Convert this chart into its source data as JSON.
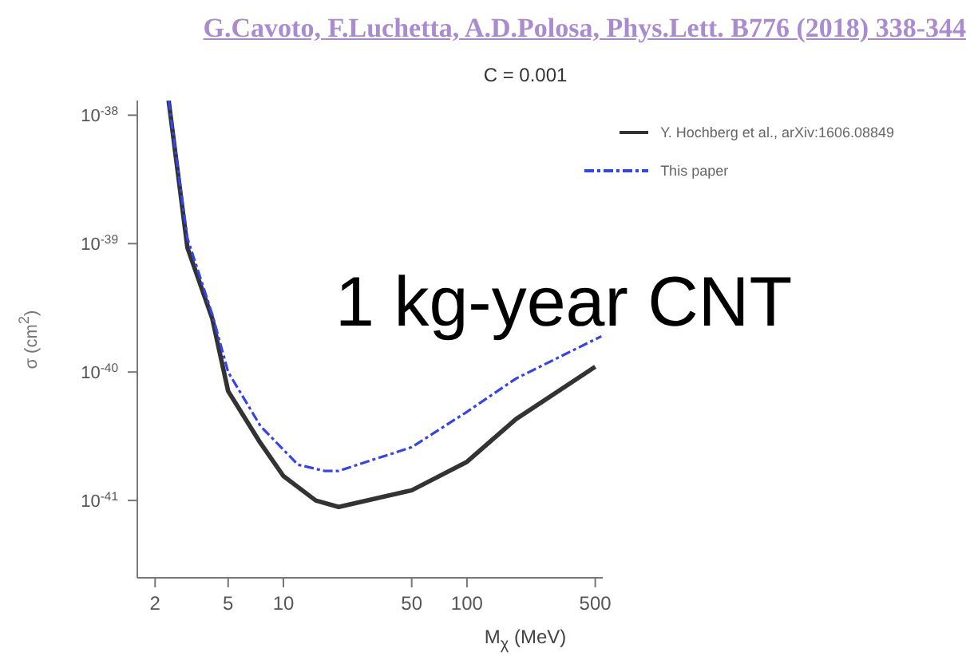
{
  "chart_data": {
    "type": "line",
    "title": "C = 0.001",
    "xlabel": "M$_{χ}$ (MeV)",
    "ylabel": "σ (cm$^{2}$)",
    "annotations": [
      "G.Cavoto, F.Luchetta, A.D.Polosa, Phys.Lett. B776 (2018) 338-344",
      "1 kg-year CNT"
    ],
    "log": "xy",
    "grid": false,
    "legend": "top right",
    "marker": "none",
    "xlim": [
      1.6,
      550
    ],
    "xticks": [
      2,
      5,
      10,
      50,
      100,
      500
    ],
    "ylim": [
      2.5e-42,
      1.3e-38
    ],
    "yticks": [
      {
        "value": 1e-38,
        "label": "10$^{-38}$"
      },
      {
        "value": 1e-39,
        "label": "10$^{-39}$"
      },
      {
        "value": 1e-40,
        "label": "10$^{-40}$"
      },
      {
        "value": 1e-41,
        "label": "10$^{-41}$"
      }
    ],
    "series": [
      {
        "name": "Y. Hochberg et al., arXiv:1606.08849",
        "color": "#333333",
        "line_style": "solid",
        "x": [
          2.37,
          3,
          4.1,
          5,
          7.5,
          10,
          15,
          20,
          50,
          100,
          185,
          500
        ],
        "values": [
          1.3e-38,
          9.3e-40,
          2.6e-40,
          7.1e-41,
          2.8e-41,
          1.55e-41,
          1e-41,
          8.9e-42,
          1.2e-41,
          2e-41,
          4.3e-41,
          1.1e-40
        ]
      },
      {
        "name": "This paper",
        "color": "#3344ee",
        "line_style": "dashed",
        "x": [
          2.37,
          3,
          4.1,
          5,
          7.5,
          12,
          16.7,
          20,
          50,
          100,
          185,
          540
        ],
        "values": [
          1.3e-38,
          1.1e-39,
          2.8e-40,
          1e-40,
          3.8e-41,
          1.9e-41,
          1.7e-41,
          1.7e-41,
          2.6e-41,
          4.9e-41,
          8.9e-41,
          1.9e-40
        ]
      }
    ]
  }
}
